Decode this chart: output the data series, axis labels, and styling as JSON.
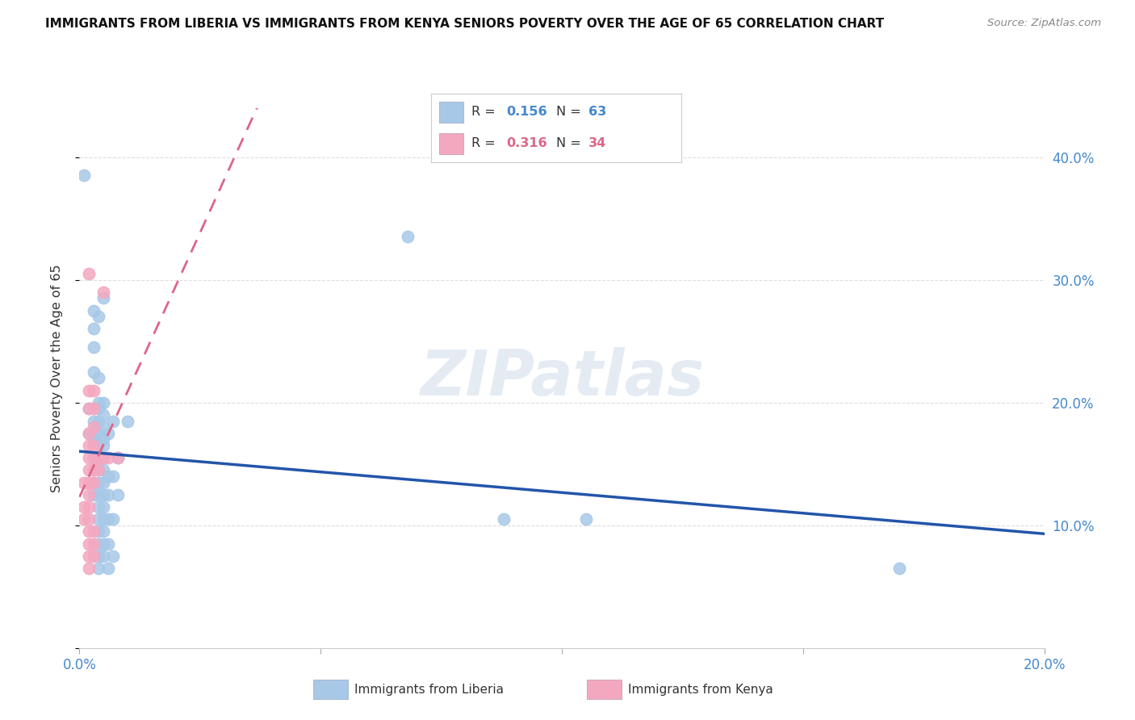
{
  "title": "IMMIGRANTS FROM LIBERIA VS IMMIGRANTS FROM KENYA SENIORS POVERTY OVER THE AGE OF 65 CORRELATION CHART",
  "source": "Source: ZipAtlas.com",
  "ylabel": "Seniors Poverty Over the Age of 65",
  "xmin": 0.0,
  "xmax": 0.2,
  "ymin": 0.0,
  "ymax": 0.44,
  "liberia_color": "#a8c8e8",
  "kenya_color": "#f4a8c0",
  "liberia_line_color": "#2255aa",
  "kenya_line_color": "#dd6688",
  "liberia_R": 0.156,
  "liberia_N": 63,
  "kenya_R": 0.316,
  "kenya_N": 34,
  "legend_label_liberia": "Immigrants from Liberia",
  "legend_label_kenya": "Immigrants from Kenya",
  "watermark": "ZIPatlas",
  "grid_color": "#dddddd",
  "background_color": "#ffffff",
  "liberia_scatter": [
    [
      0.001,
      0.385
    ],
    [
      0.002,
      0.195
    ],
    [
      0.002,
      0.175
    ],
    [
      0.003,
      0.275
    ],
    [
      0.003,
      0.26
    ],
    [
      0.003,
      0.245
    ],
    [
      0.003,
      0.225
    ],
    [
      0.003,
      0.185
    ],
    [
      0.003,
      0.175
    ],
    [
      0.003,
      0.17
    ],
    [
      0.003,
      0.155
    ],
    [
      0.003,
      0.145
    ],
    [
      0.003,
      0.135
    ],
    [
      0.003,
      0.125
    ],
    [
      0.004,
      0.27
    ],
    [
      0.004,
      0.22
    ],
    [
      0.004,
      0.2
    ],
    [
      0.004,
      0.195
    ],
    [
      0.004,
      0.185
    ],
    [
      0.004,
      0.175
    ],
    [
      0.004,
      0.165
    ],
    [
      0.004,
      0.155
    ],
    [
      0.004,
      0.145
    ],
    [
      0.004,
      0.135
    ],
    [
      0.004,
      0.125
    ],
    [
      0.004,
      0.115
    ],
    [
      0.004,
      0.105
    ],
    [
      0.004,
      0.095
    ],
    [
      0.004,
      0.085
    ],
    [
      0.004,
      0.075
    ],
    [
      0.004,
      0.065
    ],
    [
      0.005,
      0.285
    ],
    [
      0.005,
      0.2
    ],
    [
      0.005,
      0.19
    ],
    [
      0.005,
      0.18
    ],
    [
      0.005,
      0.17
    ],
    [
      0.005,
      0.165
    ],
    [
      0.005,
      0.155
    ],
    [
      0.005,
      0.145
    ],
    [
      0.005,
      0.135
    ],
    [
      0.005,
      0.125
    ],
    [
      0.005,
      0.115
    ],
    [
      0.005,
      0.105
    ],
    [
      0.005,
      0.095
    ],
    [
      0.005,
      0.085
    ],
    [
      0.005,
      0.075
    ],
    [
      0.006,
      0.175
    ],
    [
      0.006,
      0.14
    ],
    [
      0.006,
      0.125
    ],
    [
      0.006,
      0.105
    ],
    [
      0.006,
      0.085
    ],
    [
      0.006,
      0.065
    ],
    [
      0.007,
      0.185
    ],
    [
      0.007,
      0.14
    ],
    [
      0.007,
      0.105
    ],
    [
      0.007,
      0.075
    ],
    [
      0.008,
      0.155
    ],
    [
      0.008,
      0.125
    ],
    [
      0.01,
      0.185
    ],
    [
      0.068,
      0.335
    ],
    [
      0.088,
      0.105
    ],
    [
      0.105,
      0.105
    ],
    [
      0.17,
      0.065
    ]
  ],
  "kenya_scatter": [
    [
      0.001,
      0.135
    ],
    [
      0.001,
      0.115
    ],
    [
      0.001,
      0.105
    ],
    [
      0.002,
      0.305
    ],
    [
      0.002,
      0.21
    ],
    [
      0.002,
      0.195
    ],
    [
      0.002,
      0.175
    ],
    [
      0.002,
      0.165
    ],
    [
      0.002,
      0.155
    ],
    [
      0.002,
      0.145
    ],
    [
      0.002,
      0.135
    ],
    [
      0.002,
      0.125
    ],
    [
      0.002,
      0.115
    ],
    [
      0.002,
      0.105
    ],
    [
      0.002,
      0.095
    ],
    [
      0.002,
      0.085
    ],
    [
      0.002,
      0.075
    ],
    [
      0.002,
      0.065
    ],
    [
      0.003,
      0.21
    ],
    [
      0.003,
      0.195
    ],
    [
      0.003,
      0.18
    ],
    [
      0.003,
      0.165
    ],
    [
      0.003,
      0.155
    ],
    [
      0.003,
      0.145
    ],
    [
      0.003,
      0.135
    ],
    [
      0.003,
      0.095
    ],
    [
      0.003,
      0.085
    ],
    [
      0.003,
      0.075
    ],
    [
      0.004,
      0.155
    ],
    [
      0.004,
      0.145
    ],
    [
      0.005,
      0.29
    ],
    [
      0.005,
      0.155
    ],
    [
      0.006,
      0.155
    ],
    [
      0.008,
      0.155
    ]
  ]
}
